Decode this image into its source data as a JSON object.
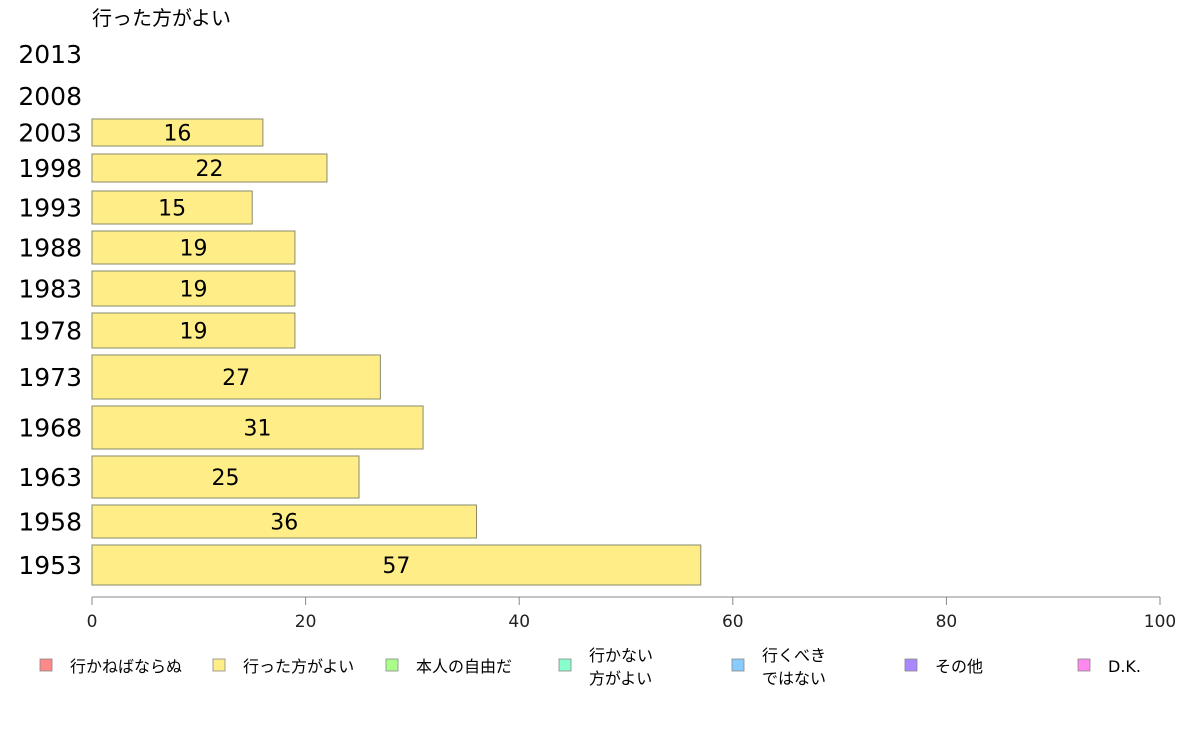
{
  "chart_data": {
    "type": "bar",
    "orientation": "horizontal",
    "title": "行った方がよい",
    "categories": [
      "2013",
      "2008",
      "2003",
      "1998",
      "1993",
      "1988",
      "1983",
      "1978",
      "1973",
      "1968",
      "1963",
      "1958",
      "1953"
    ],
    "series": [
      {
        "name": "行った方がよい",
        "values": [
          null,
          null,
          16,
          22,
          15,
          19,
          19,
          19,
          27,
          31,
          25,
          36,
          57
        ]
      }
    ],
    "xlim": [
      0,
      100
    ],
    "xticks": [
      "0",
      "20",
      "40",
      "60",
      "80",
      "100"
    ],
    "legend": {
      "placement": "bottom",
      "entries": [
        {
          "label": "行かねばならぬ",
          "color": "#ff8888"
        },
        {
          "label": "行った方がよい",
          "color": "#ffee88"
        },
        {
          "label": "本人の自由だ",
          "color": "#aaff88"
        },
        {
          "label": [
            "行かない",
            "方がよい"
          ],
          "color": "#88ffcc"
        },
        {
          "label": [
            "行くべき",
            "ではない"
          ],
          "color": "#88ccff"
        },
        {
          "label": "その他",
          "color": "#aa88ff"
        },
        {
          "label": "D.K.",
          "color": "#ff88ee"
        }
      ]
    },
    "bar_color": "#ffee88",
    "bar_border": "#8a8a6a",
    "grid": false
  }
}
